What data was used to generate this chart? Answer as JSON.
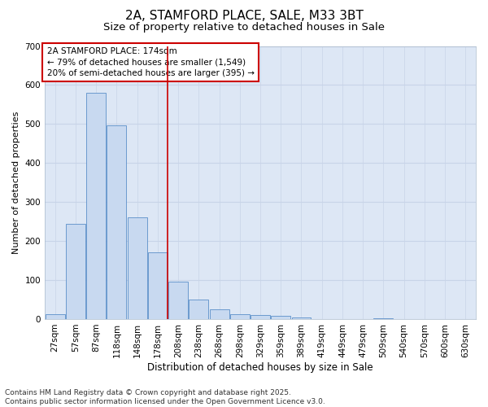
{
  "title1": "2A, STAMFORD PLACE, SALE, M33 3BT",
  "title2": "Size of property relative to detached houses in Sale",
  "xlabel": "Distribution of detached houses by size in Sale",
  "ylabel": "Number of detached properties",
  "categories": [
    "27sqm",
    "57sqm",
    "87sqm",
    "118sqm",
    "148sqm",
    "178sqm",
    "208sqm",
    "238sqm",
    "268sqm",
    "298sqm",
    "329sqm",
    "359sqm",
    "389sqm",
    "419sqm",
    "449sqm",
    "479sqm",
    "509sqm",
    "540sqm",
    "570sqm",
    "600sqm",
    "630sqm"
  ],
  "values": [
    12,
    245,
    580,
    497,
    260,
    170,
    95,
    50,
    25,
    13,
    10,
    8,
    5,
    0,
    0,
    0,
    3,
    0,
    0,
    0,
    0
  ],
  "bar_color": "#c8d9f0",
  "bar_edge_color": "#5b8fc9",
  "vline_x": 5.5,
  "vline_color": "#cc0000",
  "annotation_text": "2A STAMFORD PLACE: 174sqm\n← 79% of detached houses are smaller (1,549)\n20% of semi-detached houses are larger (395) →",
  "annotation_box_color": "#ffffff",
  "annotation_box_edge_color": "#cc0000",
  "ylim": [
    0,
    700
  ],
  "yticks": [
    0,
    100,
    200,
    300,
    400,
    500,
    600,
    700
  ],
  "grid_color": "#c8d4e8",
  "bg_color": "#dde7f5",
  "fig_bg_color": "#ffffff",
  "footnote": "Contains HM Land Registry data © Crown copyright and database right 2025.\nContains public sector information licensed under the Open Government Licence v3.0.",
  "title1_fontsize": 11,
  "title2_fontsize": 9.5,
  "xlabel_fontsize": 8.5,
  "ylabel_fontsize": 8,
  "tick_fontsize": 7.5,
  "annotation_fontsize": 7.5,
  "footnote_fontsize": 6.5
}
